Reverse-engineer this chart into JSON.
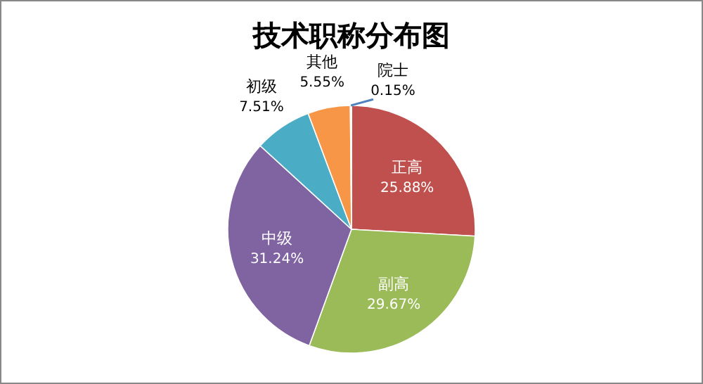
{
  "chart_data": {
    "type": "pie",
    "title": "技术职称分布图",
    "categories": [
      "正高",
      "副高",
      "中级",
      "初级",
      "其他",
      "院士"
    ],
    "values": [
      25.88,
      29.67,
      31.24,
      7.51,
      5.55,
      0.15
    ],
    "colors": [
      "#c0504d",
      "#9bbb59",
      "#8064a2",
      "#4bacc6",
      "#f79646",
      "#4f81bd"
    ],
    "value_labels": [
      "25.88%",
      "29.67%",
      "31.24%",
      "7.51%",
      "5.55%",
      "0.15%"
    ]
  }
}
